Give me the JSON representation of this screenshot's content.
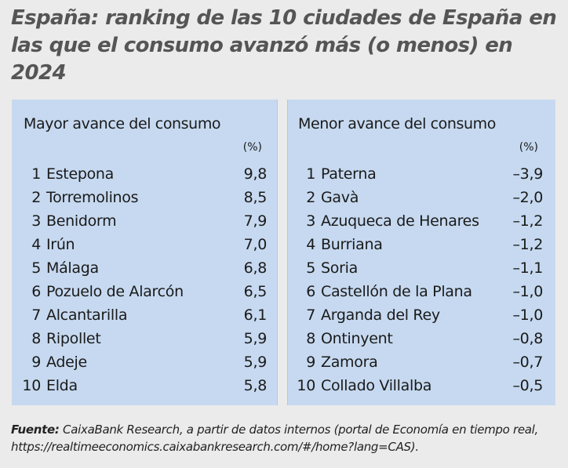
{
  "title": "España: ranking de las 10 ciudades de España en las que el consumo avanzó más (o menos) en 2024",
  "left_panel": {
    "heading": "Mayor avance del consumo",
    "unit": "(%)",
    "rows": [
      {
        "rank": "1",
        "city": "Estepona",
        "value": "9,8"
      },
      {
        "rank": "2",
        "city": "Torremolinos",
        "value": "8,5"
      },
      {
        "rank": "3",
        "city": "Benidorm",
        "value": "7,9"
      },
      {
        "rank": "4",
        "city": "Irún",
        "value": "7,0"
      },
      {
        "rank": "5",
        "city": "Málaga",
        "value": "6,8"
      },
      {
        "rank": "6",
        "city": "Pozuelo de Alarcón",
        "value": "6,5"
      },
      {
        "rank": "7",
        "city": "Alcantarilla",
        "value": "6,1"
      },
      {
        "rank": "8",
        "city": "Ripollet",
        "value": "5,9"
      },
      {
        "rank": "9",
        "city": "Adeje",
        "value": "5,9"
      },
      {
        "rank": "10",
        "city": "Elda",
        "value": "5,8"
      }
    ]
  },
  "right_panel": {
    "heading": "Menor avance del consumo",
    "unit": "(%)",
    "rows": [
      {
        "rank": "1",
        "city": "Paterna",
        "value": "–3,9"
      },
      {
        "rank": "2",
        "city": "Gavà",
        "value": "–2,0"
      },
      {
        "rank": "3",
        "city": "Azuqueca de Henares",
        "value": "–1,2"
      },
      {
        "rank": "4",
        "city": "Burriana",
        "value": "–1,2"
      },
      {
        "rank": "5",
        "city": "Soria",
        "value": "–1,1"
      },
      {
        "rank": "6",
        "city": "Castellón de la Plana",
        "value": "–1,0"
      },
      {
        "rank": "7",
        "city": "Arganda del Rey",
        "value": "–1,0"
      },
      {
        "rank": "8",
        "city": "Ontinyent",
        "value": "–0,8"
      },
      {
        "rank": "9",
        "city": "Zamora",
        "value": "–0,7"
      },
      {
        "rank": "10",
        "city": "Collado Villalba",
        "value": "–0,5"
      }
    ]
  },
  "source": {
    "label": "Fuente:",
    "text": " CaixaBank Research, a partir de datos internos (portal de Economía en tiempo real, https://realtimeeconomics.caixabankresearch.com/#/home?lang=CAS)."
  },
  "colors": {
    "page_background": "#ebebeb",
    "panel_background": "#c6d9f0",
    "title_color": "#555555"
  }
}
